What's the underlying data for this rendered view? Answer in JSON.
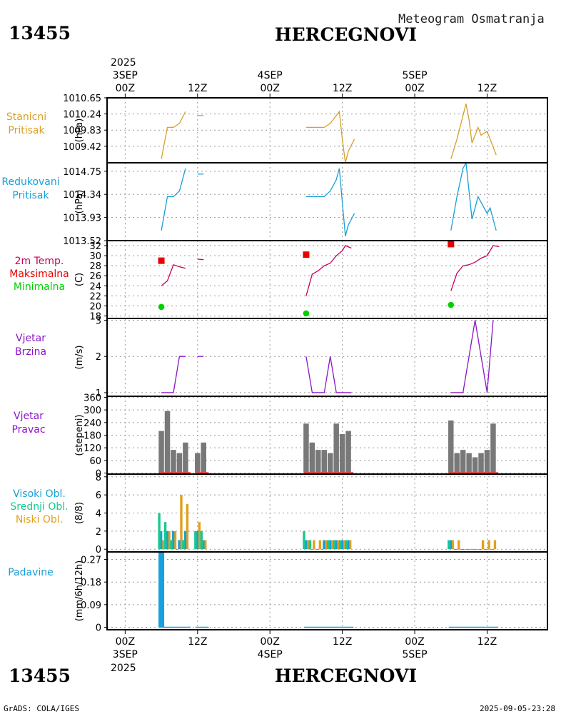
{
  "header": {
    "station_id": "13455",
    "station_name": "HERCEGNOVI",
    "meteogram_title": "Meteogram Osmatranja"
  },
  "footer": {
    "station_id": "13455",
    "station_name": "HERCEGNOVI",
    "credit": "GrADS: COLA/IGES",
    "timestamp": "2025-09-05-23:28"
  },
  "time_axis": {
    "year": "2025",
    "ticks": [
      {
        "hour": 0,
        "label": "00Z",
        "date": "3SEP"
      },
      {
        "hour": 12,
        "label": "12Z",
        "date": ""
      },
      {
        "hour": 24,
        "label": "00Z",
        "date": "4SEP"
      },
      {
        "hour": 36,
        "label": "12Z",
        "date": ""
      },
      {
        "hour": 48,
        "label": "00Z",
        "date": "5SEP"
      },
      {
        "hour": 60,
        "label": "12Z",
        "date": ""
      }
    ],
    "range_hours": [
      -3,
      70
    ]
  },
  "colors": {
    "pressure": "#d8a028",
    "reduced": "#18a0d8",
    "temp": "#c8005a",
    "tmax": "#e80000",
    "tmin": "#00d000",
    "wind": "#8c14c8",
    "direction_bar": "#787878",
    "direction_line": "#e83030",
    "cloud_high": "#18a0d8",
    "cloud_mid": "#18c890",
    "cloud_low": "#e0a020",
    "precip": "#18a0e0"
  },
  "chart_data": [
    {
      "type": "line",
      "title_lines": [
        "Stanicni",
        "Pritisak"
      ],
      "ylabel": "(hPa)",
      "ylim": [
        1009.0,
        1010.65
      ],
      "ticks": [
        1009.42,
        1009.83,
        1010.24,
        1010.65
      ],
      "segments": [
        [
          [
            6,
            1009.1
          ],
          [
            7,
            1009.9
          ],
          [
            8,
            1009.9
          ],
          [
            9,
            1010.0
          ],
          [
            10,
            1010.3
          ]
        ],
        [
          [
            12,
            1010.2
          ],
          [
            13,
            1010.2
          ]
        ],
        [
          [
            30,
            1009.9
          ],
          [
            33,
            1009.9
          ],
          [
            34,
            1010.0
          ],
          [
            35,
            1010.2
          ],
          [
            35.5,
            1010.3
          ],
          [
            36,
            1009.6
          ],
          [
            36.5,
            1009.0
          ],
          [
            37,
            1009.3
          ],
          [
            38,
            1009.6
          ]
        ],
        [
          [
            54,
            1009.1
          ],
          [
            55,
            1009.6
          ],
          [
            56,
            1010.2
          ],
          [
            56.5,
            1010.5
          ],
          [
            57,
            1010.1
          ],
          [
            57.5,
            1009.5
          ],
          [
            58,
            1009.7
          ],
          [
            58.5,
            1009.9
          ],
          [
            59,
            1009.7
          ],
          [
            60,
            1009.8
          ],
          [
            60.5,
            1009.6
          ],
          [
            61,
            1009.4
          ],
          [
            61.5,
            1009.2
          ]
        ]
      ]
    },
    {
      "type": "line",
      "title_lines": [
        "Redukovani",
        "Pritisak"
      ],
      "ylabel": "(hPa)",
      "ylim": [
        1013.52,
        1014.9
      ],
      "ticks": [
        1013.52,
        1013.93,
        1014.34,
        1014.75
      ],
      "segments": [
        [
          [
            6,
            1013.7
          ],
          [
            7,
            1014.3
          ],
          [
            8,
            1014.3
          ],
          [
            9,
            1014.4
          ],
          [
            10,
            1014.8
          ]
        ],
        [
          [
            12,
            1014.7
          ],
          [
            13,
            1014.7
          ]
        ],
        [
          [
            30,
            1014.3
          ],
          [
            33,
            1014.3
          ],
          [
            34,
            1014.4
          ],
          [
            35,
            1014.6
          ],
          [
            35.5,
            1014.8
          ],
          [
            36,
            1014.2
          ],
          [
            36.5,
            1013.6
          ],
          [
            37,
            1013.8
          ],
          [
            38,
            1014.0
          ]
        ],
        [
          [
            54,
            1013.7
          ],
          [
            55,
            1014.3
          ],
          [
            56,
            1014.8
          ],
          [
            56.5,
            1014.9
          ],
          [
            57,
            1014.4
          ],
          [
            57.5,
            1013.9
          ],
          [
            58,
            1014.1
          ],
          [
            58.5,
            1014.3
          ],
          [
            59,
            1014.2
          ],
          [
            60,
            1014.0
          ],
          [
            60.5,
            1014.1
          ],
          [
            61,
            1013.9
          ],
          [
            61.5,
            1013.7
          ]
        ]
      ]
    },
    {
      "type": "line",
      "title_lines": [
        "2m Temp.",
        "Maksimalna",
        "Minimalna"
      ],
      "ylabel": "(C)",
      "ylim": [
        17.5,
        33
      ],
      "ticks": [
        18,
        20,
        22,
        24,
        26,
        28,
        30,
        32
      ],
      "segments": [
        [
          [
            6,
            24
          ],
          [
            7,
            25
          ],
          [
            8,
            28.2
          ],
          [
            9,
            27.8
          ],
          [
            10,
            27.5
          ]
        ],
        [
          [
            12,
            29.3
          ],
          [
            13,
            29.2
          ]
        ],
        [
          [
            30,
            22
          ],
          [
            31,
            26.3
          ],
          [
            32,
            27
          ],
          [
            33,
            28
          ],
          [
            34,
            28.5
          ],
          [
            35,
            30
          ],
          [
            36,
            31
          ],
          [
            36.5,
            32
          ],
          [
            37.5,
            31.5
          ]
        ],
        [
          [
            54,
            23
          ],
          [
            55,
            26.5
          ],
          [
            56,
            28
          ],
          [
            57,
            28.2
          ],
          [
            58,
            28.7
          ],
          [
            59,
            29.5
          ],
          [
            60,
            30
          ],
          [
            61,
            32
          ],
          [
            62,
            31.8
          ]
        ]
      ],
      "tmax": [
        {
          "hour": 6,
          "value": 29
        },
        {
          "hour": 30,
          "value": 30.2
        },
        {
          "hour": 54,
          "value": 32.3
        }
      ],
      "tmin": [
        {
          "hour": 6,
          "value": 19.8
        },
        {
          "hour": 30,
          "value": 18.5
        },
        {
          "hour": 54,
          "value": 20.2
        }
      ]
    },
    {
      "type": "line",
      "title_lines": [
        "Vjetar",
        "Brzina"
      ],
      "ylabel": "(m/s)",
      "ylim": [
        0.9,
        3.05
      ],
      "ticks": [
        1,
        2,
        3
      ],
      "segments": [
        [
          [
            6,
            1
          ],
          [
            8,
            1
          ],
          [
            9,
            2
          ],
          [
            10,
            2
          ]
        ],
        [
          [
            12,
            2
          ],
          [
            13,
            2
          ]
        ],
        [
          [
            30,
            2
          ],
          [
            31,
            1
          ],
          [
            33,
            1
          ],
          [
            34,
            2
          ],
          [
            35,
            1
          ],
          [
            37.5,
            1
          ]
        ],
        [
          [
            54,
            1
          ],
          [
            56,
            1
          ],
          [
            58,
            3
          ],
          [
            60,
            1
          ],
          [
            61,
            3
          ]
        ]
      ]
    },
    {
      "type": "bar",
      "title_lines": [
        "Vjetar",
        "Pravac"
      ],
      "ylabel": "(stepeni)",
      "ylim": [
        -5,
        365
      ],
      "ticks": [
        0,
        60,
        120,
        180,
        240,
        300,
        360
      ],
      "bars": [
        {
          "hour": 6,
          "value": 200
        },
        {
          "hour": 7,
          "value": 295
        },
        {
          "hour": 8,
          "value": 110
        },
        {
          "hour": 9,
          "value": 95
        },
        {
          "hour": 10,
          "value": 145
        },
        {
          "hour": 12,
          "value": 95
        },
        {
          "hour": 13,
          "value": 145
        },
        {
          "hour": 30,
          "value": 235
        },
        {
          "hour": 31,
          "value": 145
        },
        {
          "hour": 32,
          "value": 110
        },
        {
          "hour": 33,
          "value": 110
        },
        {
          "hour": 34,
          "value": 95
        },
        {
          "hour": 35,
          "value": 235
        },
        {
          "hour": 36,
          "value": 185
        },
        {
          "hour": 37,
          "value": 200
        },
        {
          "hour": 54,
          "value": 250
        },
        {
          "hour": 55,
          "value": 95
        },
        {
          "hour": 56,
          "value": 110
        },
        {
          "hour": 57,
          "value": 95
        },
        {
          "hour": 58,
          "value": 75
        },
        {
          "hour": 59,
          "value": 95
        },
        {
          "hour": 60,
          "value": 110
        },
        {
          "hour": 61,
          "value": 235
        }
      ],
      "speed_segments": [
        [
          6,
          10.5
        ],
        [
          12,
          13.5
        ],
        [
          30,
          37.5
        ],
        [
          54,
          61.5
        ]
      ]
    },
    {
      "type": "bar",
      "title_lines": [
        "Visoki Obl.",
        "Srednji Obl.",
        "Niski Obl."
      ],
      "ylabel": "(8/8)",
      "ylim": [
        -0.3,
        8.3
      ],
      "ticks": [
        0,
        2,
        4,
        6,
        8
      ],
      "series": [
        {
          "name": "Niski Obl.",
          "key": "cloud_low",
          "offset": 0.3,
          "values": [
            {
              "hour": 6,
              "value": 1
            },
            {
              "hour": 7,
              "value": 2
            },
            {
              "hour": 8,
              "value": 2
            },
            {
              "hour": 9,
              "value": 6
            },
            {
              "hour": 10,
              "value": 5
            },
            {
              "hour": 12,
              "value": 3
            },
            {
              "hour": 13,
              "value": 1
            },
            {
              "hour": 30,
              "value": 1
            },
            {
              "hour": 31,
              "value": 1
            },
            {
              "hour": 32,
              "value": 1
            },
            {
              "hour": 33,
              "value": 1
            },
            {
              "hour": 34,
              "value": 1
            },
            {
              "hour": 35,
              "value": 1
            },
            {
              "hour": 36,
              "value": 1
            },
            {
              "hour": 37,
              "value": 1
            },
            {
              "hour": 54,
              "value": 1
            },
            {
              "hour": 55,
              "value": 1
            },
            {
              "hour": 56,
              "value": 0
            },
            {
              "hour": 57,
              "value": 0
            },
            {
              "hour": 58,
              "value": 0
            },
            {
              "hour": 59,
              "value": 1
            },
            {
              "hour": 60,
              "value": 1
            },
            {
              "hour": 61,
              "value": 1
            }
          ]
        },
        {
          "name": "Visoki Obl.",
          "key": "cloud_high",
          "offset": -0.05,
          "values": [
            {
              "hour": 6,
              "value": 2
            },
            {
              "hour": 7,
              "value": 2
            },
            {
              "hour": 8,
              "value": 2
            },
            {
              "hour": 9,
              "value": 1
            },
            {
              "hour": 10,
              "value": 2
            },
            {
              "hour": 12,
              "value": 2
            },
            {
              "hour": 13,
              "value": 1
            },
            {
              "hour": 30,
              "value": 1
            },
            {
              "hour": 31,
              "value": 0
            },
            {
              "hour": 32,
              "value": 0
            },
            {
              "hour": 33,
              "value": 1
            },
            {
              "hour": 34,
              "value": 1
            },
            {
              "hour": 35,
              "value": 1
            },
            {
              "hour": 36,
              "value": 1
            },
            {
              "hour": 37,
              "value": 1
            },
            {
              "hour": 54,
              "value": 1
            },
            {
              "hour": 55,
              "value": 0
            },
            {
              "hour": 56,
              "value": 0
            },
            {
              "hour": 57,
              "value": 0
            },
            {
              "hour": 58,
              "value": 0
            },
            {
              "hour": 59,
              "value": 0
            },
            {
              "hour": 60,
              "value": 0
            },
            {
              "hour": 61,
              "value": 0
            }
          ]
        },
        {
          "name": "Srednji Obl.",
          "key": "cloud_mid",
          "offset": -0.35,
          "values": [
            {
              "hour": 6,
              "value": 4
            },
            {
              "hour": 7,
              "value": 3
            },
            {
              "hour": 8,
              "value": 1
            },
            {
              "hour": 9,
              "value": 0
            },
            {
              "hour": 10,
              "value": 1
            },
            {
              "hour": 12,
              "value": 2
            },
            {
              "hour": 13,
              "value": 2
            },
            {
              "hour": 30,
              "value": 2
            },
            {
              "hour": 31,
              "value": 1
            },
            {
              "hour": 32,
              "value": 0
            },
            {
              "hour": 33,
              "value": 0
            },
            {
              "hour": 34,
              "value": 1
            },
            {
              "hour": 35,
              "value": 1
            },
            {
              "hour": 36,
              "value": 1
            },
            {
              "hour": 37,
              "value": 1
            },
            {
              "hour": 54,
              "value": 1
            },
            {
              "hour": 55,
              "value": 0
            },
            {
              "hour": 56,
              "value": 0
            },
            {
              "hour": 57,
              "value": 0
            },
            {
              "hour": 58,
              "value": 0
            },
            {
              "hour": 59,
              "value": 0
            },
            {
              "hour": 60,
              "value": 0
            },
            {
              "hour": 61,
              "value": 0
            }
          ]
        }
      ]
    },
    {
      "type": "bar",
      "title_lines": [
        "Padavine"
      ],
      "ylabel": "(mm/6h/12h)",
      "ylim": [
        -0.01,
        0.3
      ],
      "ticks": [
        0,
        0.09,
        0.18,
        0.27
      ],
      "tick_labels": [
        "0",
        "0.09",
        "0.18",
        "0.27"
      ],
      "bars": [
        {
          "hour": 6,
          "value": 0.3
        }
      ],
      "baseline_segments": [
        [
          6,
          10.5
        ],
        [
          12,
          13.5
        ],
        [
          30,
          37.5
        ],
        [
          54,
          61.5
        ]
      ]
    }
  ]
}
